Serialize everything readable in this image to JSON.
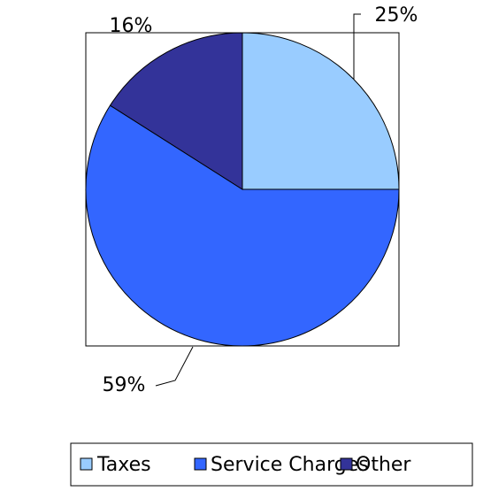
{
  "chart_data": {
    "type": "pie",
    "categories": [
      "Taxes",
      "Service Charges",
      "Other"
    ],
    "values": [
      25,
      59,
      16
    ],
    "value_labels": [
      "25%",
      "59%",
      "16%"
    ],
    "colors": [
      "#99ccff",
      "#3366ff",
      "#333399"
    ],
    "legend": "bottom"
  }
}
